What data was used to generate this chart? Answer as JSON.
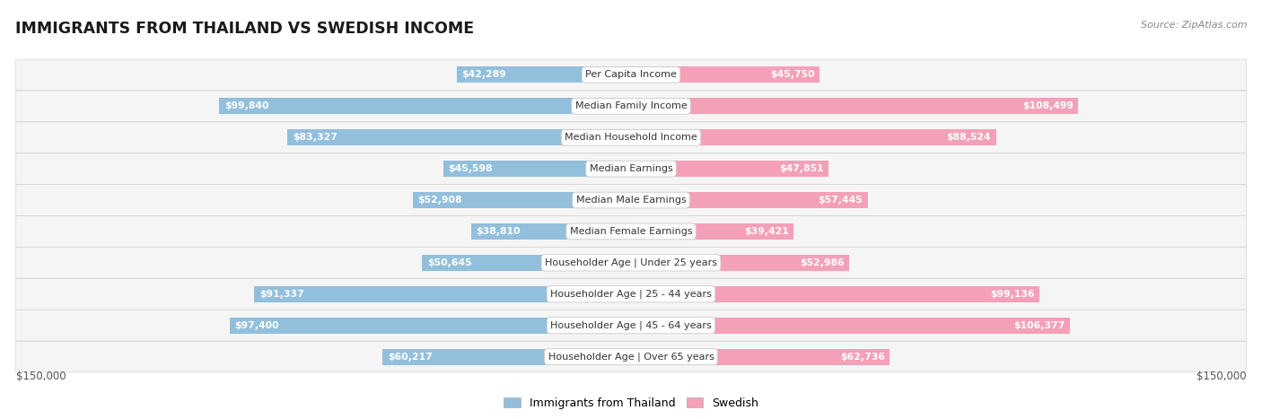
{
  "title": "IMMIGRANTS FROM THAILAND VS SWEDISH INCOME",
  "source": "Source: ZipAtlas.com",
  "categories": [
    "Per Capita Income",
    "Median Family Income",
    "Median Household Income",
    "Median Earnings",
    "Median Male Earnings",
    "Median Female Earnings",
    "Householder Age | Under 25 years",
    "Householder Age | 25 - 44 years",
    "Householder Age | 45 - 64 years",
    "Householder Age | Over 65 years"
  ],
  "thailand_values": [
    42289,
    99840,
    83327,
    45598,
    52908,
    38810,
    50645,
    91337,
    97400,
    60217
  ],
  "swedish_values": [
    45750,
    108499,
    88524,
    47851,
    57445,
    39421,
    52986,
    99136,
    106377,
    62736
  ],
  "thailand_labels": [
    "$42,289",
    "$99,840",
    "$83,327",
    "$45,598",
    "$52,908",
    "$38,810",
    "$50,645",
    "$91,337",
    "$97,400",
    "$60,217"
  ],
  "swedish_labels": [
    "$45,750",
    "$108,499",
    "$88,524",
    "$47,851",
    "$57,445",
    "$39,421",
    "$52,986",
    "$99,136",
    "$106,377",
    "$62,736"
  ],
  "thailand_color": "#92bfdc",
  "swedish_color": "#f4a0b8",
  "swedish_strong_color": "#f07090",
  "thailand_strong_color": "#5b9dc0",
  "max_value": 150000,
  "legend_thailand": "Immigrants from Thailand",
  "legend_swedish": "Swedish",
  "inside_label_threshold": 27000
}
